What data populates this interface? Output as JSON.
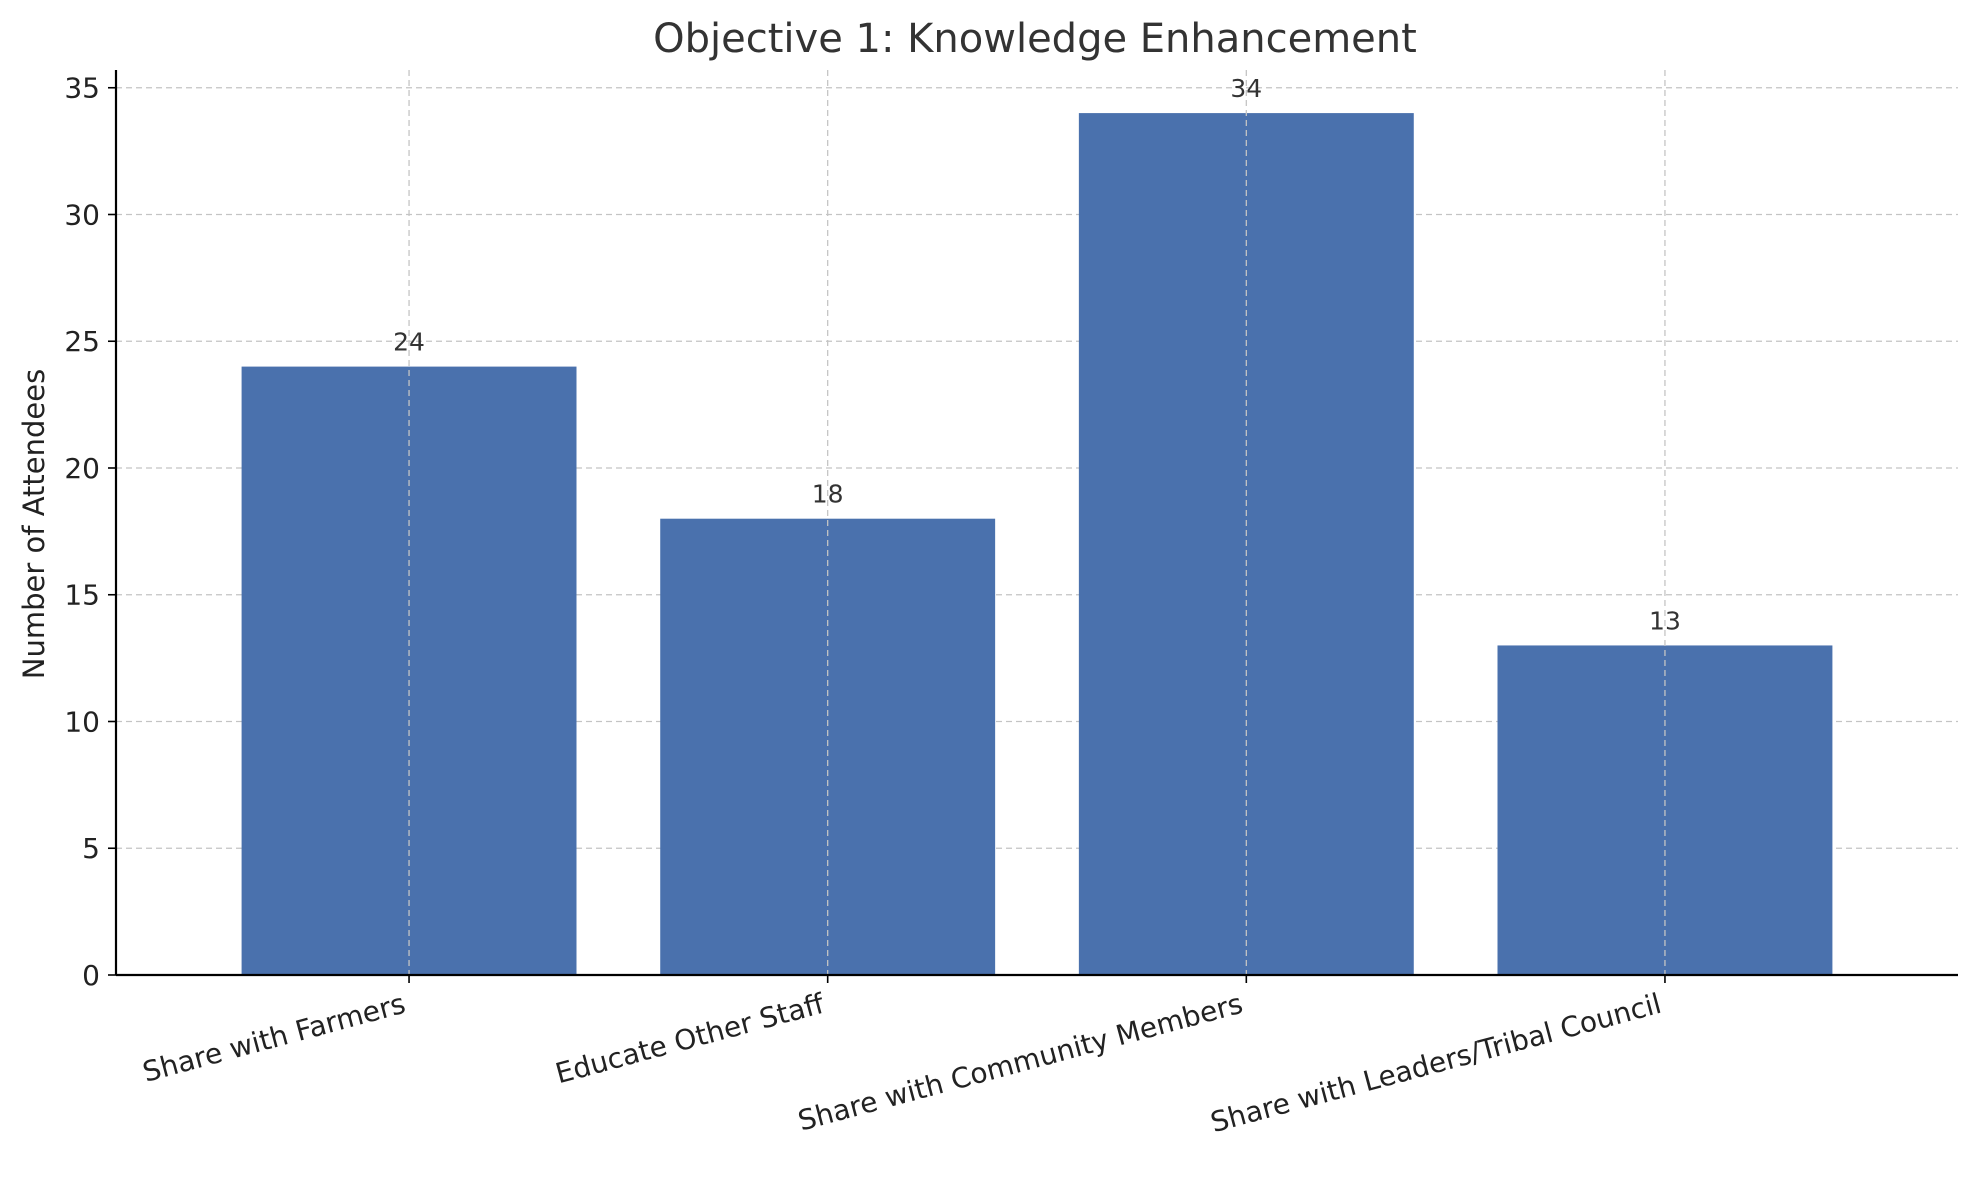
{
  "chart_data": {
    "type": "bar",
    "title": "Objective 1: Knowledge Enhancement",
    "xlabel": "",
    "ylabel": "Number of Attendees",
    "categories": [
      "Share with Farmers",
      "Educate Other Staff",
      "Share with Community Members",
      "Share with Leaders/Tribal Council"
    ],
    "values": [
      24,
      18,
      34,
      13
    ],
    "data_labels": [
      "24",
      "18",
      "34",
      "13"
    ],
    "ylim": [
      0,
      35.7
    ],
    "yticks": [
      0,
      5,
      10,
      15,
      20,
      25,
      30,
      35
    ],
    "grid": true,
    "bar_color": "#4a71ad",
    "legend": "none"
  }
}
